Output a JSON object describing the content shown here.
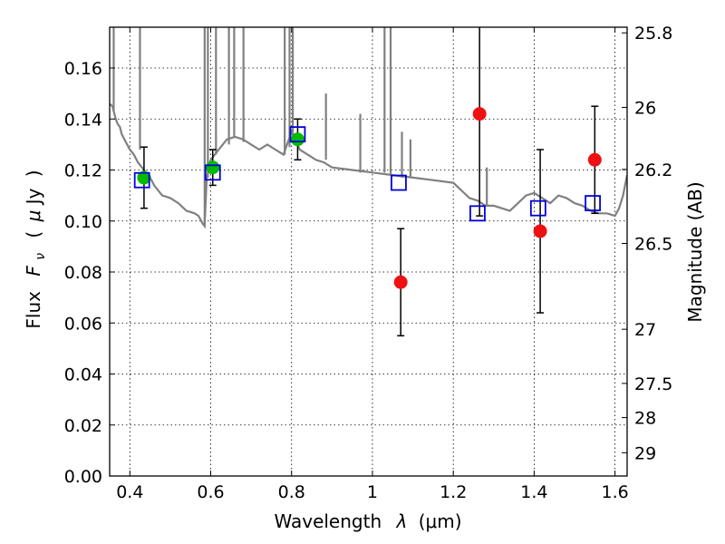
{
  "chart_data": {
    "type": "scatter",
    "xlabel_text": "Wavelength",
    "xlabel_symbol": "λ",
    "xlabel_unit": "(μm)",
    "ylabel_text": "Flux",
    "ylabel_symbol": "F",
    "ylabel_subscript": "ν",
    "ylabel_unit_open": "(",
    "ylabel_unit_mu": "μ",
    "ylabel_unit": "Jy",
    "ylabel_unit_close": ")",
    "y2label": "Magnitude (AB)",
    "xlim": [
      0.35,
      1.63
    ],
    "ylim": [
      0.0,
      0.176
    ],
    "x_ticks": [
      {
        "value": 0.4,
        "label": "0.4"
      },
      {
        "value": 0.6,
        "label": "0.6"
      },
      {
        "value": 0.8,
        "label": "0.8"
      },
      {
        "value": 1.0,
        "label": "1"
      },
      {
        "value": 1.2,
        "label": "1.2"
      },
      {
        "value": 1.4,
        "label": "1.4"
      },
      {
        "value": 1.6,
        "label": "1.6"
      }
    ],
    "y_ticks": [
      {
        "value": 0.0,
        "label": "0.00"
      },
      {
        "value": 0.02,
        "label": "0.02"
      },
      {
        "value": 0.04,
        "label": "0.04"
      },
      {
        "value": 0.06,
        "label": "0.06"
      },
      {
        "value": 0.08,
        "label": "0.08"
      },
      {
        "value": 0.1,
        "label": "0.10"
      },
      {
        "value": 0.12,
        "label": "0.12"
      },
      {
        "value": 0.14,
        "label": "0.14"
      },
      {
        "value": 0.16,
        "label": "0.16"
      }
    ],
    "y2_ticks": [
      {
        "value": 25.8,
        "label": "25.8"
      },
      {
        "value": 26.0,
        "label": "26"
      },
      {
        "value": 26.2,
        "label": "26.2"
      },
      {
        "value": 26.5,
        "label": "26.5"
      },
      {
        "value": 27.0,
        "label": "27"
      },
      {
        "value": 27.5,
        "label": "27.5"
      },
      {
        "value": 28.0,
        "label": "28"
      },
      {
        "value": 29.0,
        "label": "29"
      }
    ],
    "grid": true,
    "colors": {
      "model": "#808080",
      "detection": "#00bb00",
      "low_significance": "#ee1111",
      "model_flux": "#0000dd",
      "errorbar": "#000000"
    },
    "series": [
      {
        "marker": "line",
        "x": [
          0.35,
          0.357,
          0.365,
          0.37,
          0.375,
          0.38,
          0.39,
          0.4,
          0.41,
          0.42,
          0.43,
          0.44,
          0.45,
          0.46,
          0.47,
          0.48,
          0.5,
          0.52,
          0.54,
          0.56,
          0.57,
          0.58,
          0.585,
          0.59,
          0.595,
          0.6,
          0.62,
          0.64,
          0.66,
          0.68,
          0.7,
          0.72,
          0.74,
          0.76,
          0.78,
          0.8,
          0.82,
          0.84,
          0.86,
          0.88,
          0.9,
          0.95,
          1.0,
          1.05,
          1.1,
          1.15,
          1.2,
          1.22,
          1.24,
          1.26,
          1.28,
          1.3,
          1.32,
          1.34,
          1.36,
          1.38,
          1.4,
          1.42,
          1.44,
          1.46,
          1.48,
          1.5,
          1.52,
          1.54,
          1.56,
          1.58,
          1.6,
          1.61,
          1.62,
          1.63
        ],
        "y": [
          0.146,
          0.145,
          0.14,
          0.138,
          0.137,
          0.134,
          0.131,
          0.128,
          0.126,
          0.123,
          0.121,
          0.119,
          0.117,
          0.114,
          0.112,
          0.11,
          0.109,
          0.107,
          0.104,
          0.103,
          0.102,
          0.099,
          0.098,
          0.117,
          0.12,
          0.124,
          0.128,
          0.132,
          0.133,
          0.132,
          0.13,
          0.128,
          0.13,
          0.128,
          0.126,
          0.135,
          0.128,
          0.126,
          0.124,
          0.123,
          0.121,
          0.12,
          0.119,
          0.118,
          0.117,
          0.116,
          0.115,
          0.112,
          0.109,
          0.108,
          0.106,
          0.106,
          0.105,
          0.104,
          0.107,
          0.11,
          0.111,
          0.109,
          0.107,
          0.11,
          0.109,
          0.107,
          0.106,
          0.104,
          0.103,
          0.103,
          0.102,
          0.105,
          0.11,
          0.118
        ]
      },
      {
        "marker": "circle",
        "x": [
          0.435,
          0.605,
          0.815
        ],
        "y": [
          0.117,
          0.121,
          0.132
        ]
      },
      {
        "marker": "circle",
        "x": [
          1.07,
          1.265,
          1.415,
          1.55
        ],
        "y": [
          0.076,
          0.142,
          0.096,
          0.124
        ]
      },
      {
        "marker": "square",
        "x": [
          0.43,
          0.605,
          0.815,
          1.065,
          1.26,
          1.41,
          1.545
        ],
        "y": [
          0.116,
          0.119,
          0.134,
          0.115,
          0.103,
          0.105,
          0.107
        ]
      }
    ],
    "errorbars": [
      {
        "x": 0.435,
        "y": 0.117,
        "yerr": 0.012
      },
      {
        "x": 0.605,
        "y": 0.121,
        "yerr": 0.007
      },
      {
        "x": 0.815,
        "y": 0.132,
        "yerr": 0.008
      },
      {
        "x": 1.07,
        "y": 0.076,
        "yerr": 0.021
      },
      {
        "x": 1.265,
        "y": 0.142,
        "yerr": 0.04
      },
      {
        "x": 1.415,
        "y": 0.096,
        "yerr": 0.032
      },
      {
        "x": 1.55,
        "y": 0.124,
        "yerr": 0.021
      }
    ]
  }
}
